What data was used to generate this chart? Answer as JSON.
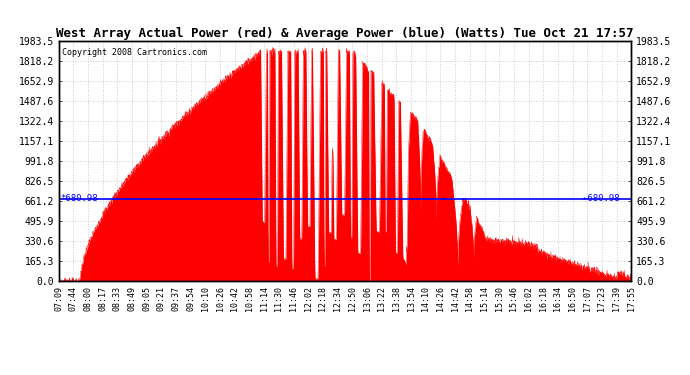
{
  "title": "West Array Actual Power (red) & Average Power (blue) (Watts) Tue Oct 21 17:57",
  "copyright": "Copyright 2008 Cartronics.com",
  "avg_power": 680.98,
  "ymax": 1983.5,
  "ymin": 0.0,
  "yticks": [
    0.0,
    165.3,
    330.6,
    495.9,
    661.2,
    826.5,
    991.8,
    1157.1,
    1322.4,
    1487.6,
    1652.9,
    1818.2,
    1983.5
  ],
  "xtick_labels": [
    "07:09",
    "07:44",
    "08:00",
    "08:17",
    "08:33",
    "08:49",
    "09:05",
    "09:21",
    "09:37",
    "09:54",
    "10:10",
    "10:26",
    "10:42",
    "10:58",
    "11:14",
    "11:30",
    "11:46",
    "12:02",
    "12:18",
    "12:34",
    "12:50",
    "13:06",
    "13:22",
    "13:38",
    "13:54",
    "14:10",
    "14:26",
    "14:42",
    "14:58",
    "15:14",
    "15:30",
    "15:46",
    "16:02",
    "16:18",
    "16:34",
    "16:50",
    "17:07",
    "17:23",
    "17:39",
    "17:55"
  ],
  "bg_color": "#ffffff",
  "plot_bg": "#ffffff",
  "red_color": "#ff0000",
  "blue_color": "#0000ff",
  "grid_color": "#cccccc"
}
